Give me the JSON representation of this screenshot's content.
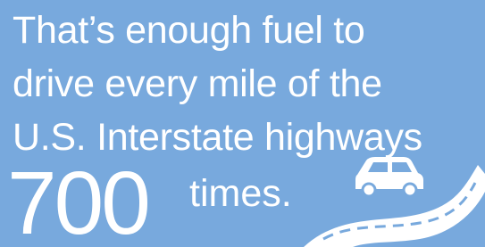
{
  "text": {
    "lines": [
      "That’s enough fuel to",
      "drive every mile of the",
      "U.S. Interstate highways"
    ],
    "number": "700",
    "suffix": "times."
  }
}
